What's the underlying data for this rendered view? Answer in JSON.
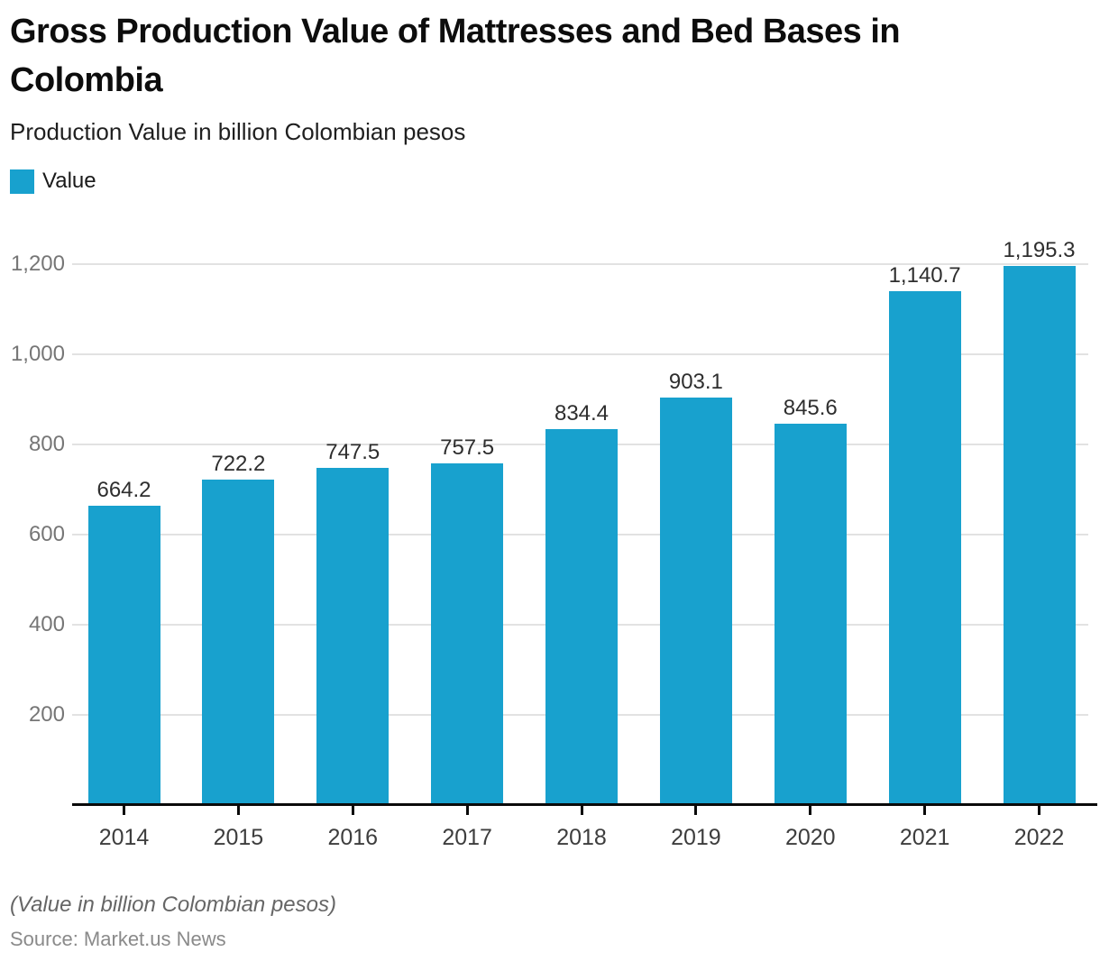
{
  "header": {
    "title": "Gross Production Value of Mattresses and Bed Bases in Colombia",
    "subtitle": "Production Value in billion Colombian pesos"
  },
  "legend": {
    "label": "Value",
    "swatch_color": "#18a1ce"
  },
  "chart_data": {
    "type": "bar",
    "title": "Gross Production Value of Mattresses and Bed Bases in Colombia",
    "subtitle": "Production Value in billion Colombian pesos",
    "categories": [
      "2014",
      "2015",
      "2016",
      "2017",
      "2018",
      "2019",
      "2020",
      "2021",
      "2022"
    ],
    "series": [
      {
        "name": "Value",
        "values": [
          664.2,
          722.2,
          747.5,
          757.5,
          834.4,
          903.1,
          845.6,
          1140.7,
          1195.3
        ],
        "value_labels": [
          "664.2",
          "722.2",
          "747.5",
          "757.5",
          "834.4",
          "903.1",
          "845.6",
          "1,140.7",
          "1,195.3"
        ]
      }
    ],
    "xlabel": "",
    "ylabel": "Production Value in billion Colombian pesos",
    "ylim": [
      0,
      1300
    ],
    "y_ticks": [
      {
        "value": 200,
        "label": "200"
      },
      {
        "value": 400,
        "label": "400"
      },
      {
        "value": 600,
        "label": "600"
      },
      {
        "value": 800,
        "label": "800"
      },
      {
        "value": 1000,
        "label": "1,000"
      },
      {
        "value": 1200,
        "label": "1,200"
      }
    ],
    "grid": "horizontal",
    "legend_position": "top-left",
    "bar_color": "#18a1ce",
    "gridline_color": "#e2e2e2"
  },
  "footer": {
    "note": "(Value in billion Colombian pesos)",
    "source": "Source: Market.us News"
  }
}
